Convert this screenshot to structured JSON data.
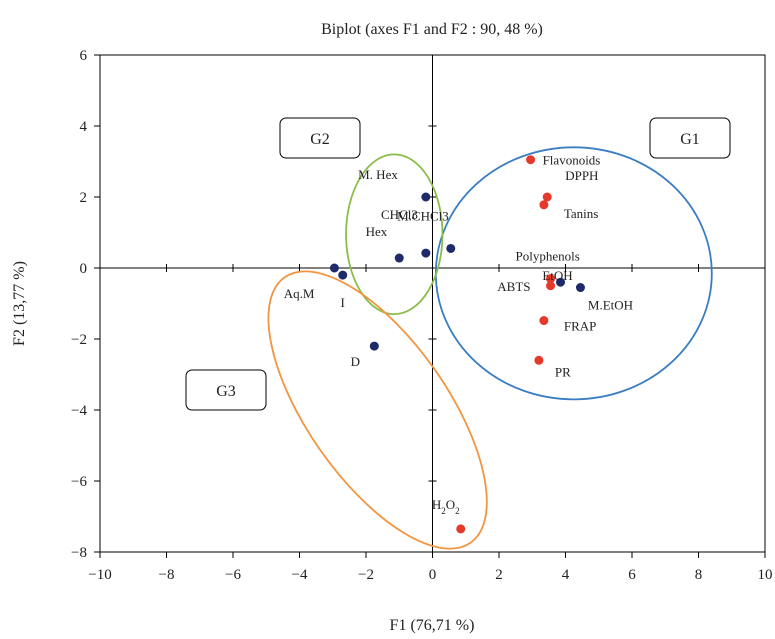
{
  "chart_data": {
    "type": "scatter",
    "title": "Biplot (axes F1 and F2 : 90, 48 %)",
    "xlabel": "F1 (76,71 %)",
    "ylabel": "F2 (13,77 %)",
    "xlim": [
      -10,
      10
    ],
    "ylim": [
      -8,
      6
    ],
    "x_ticks": [
      -10,
      -8,
      -6,
      -4,
      -2,
      0,
      2,
      4,
      6,
      8,
      10
    ],
    "y_ticks": [
      -8,
      -6,
      -4,
      -2,
      0,
      2,
      4,
      6
    ],
    "grid": false,
    "colors": {
      "observations": "#1f2a6b",
      "variables": "#e53a2b",
      "G1": "#3a7ec1",
      "G2": "#8bbd4a",
      "G3": "#f39440"
    },
    "observations": [
      {
        "label": "M. Hex",
        "x": -0.2,
        "y": 2.0
      },
      {
        "label": "CHCl3",
        "x": -0.2,
        "y": 0.42
      },
      {
        "label": "Hex",
        "x": -1.0,
        "y": 0.28
      },
      {
        "label": "M.CHCl3",
        "x": 0.55,
        "y": 0.55
      },
      {
        "label": "Aq.M",
        "x": -2.95,
        "y": 0.0
      },
      {
        "label": "I",
        "x": -2.7,
        "y": -0.2
      },
      {
        "label": "D",
        "x": -1.75,
        "y": -2.2
      },
      {
        "label": "EtOH",
        "x": 3.85,
        "y": -0.4
      },
      {
        "label": "M.EtOH",
        "x": 4.45,
        "y": -0.55
      }
    ],
    "variables": [
      {
        "label": "Flavonoids",
        "x": 2.95,
        "y": 3.05
      },
      {
        "label": "DPPH",
        "x": 3.45,
        "y": 2.0
      },
      {
        "label": "Tanins",
        "x": 3.35,
        "y": 1.78
      },
      {
        "label": "Polyphenols",
        "x": 3.55,
        "y": -0.3
      },
      {
        "label": "ABTS",
        "x": 3.55,
        "y": -0.5
      },
      {
        "label": "FRAP",
        "x": 3.35,
        "y": -1.48
      },
      {
        "label": "PR",
        "x": 3.2,
        "y": -2.6
      },
      {
        "label": "H2O2",
        "x": 0.85,
        "y": -7.35
      }
    ],
    "groups": [
      {
        "label": "G1"
      },
      {
        "label": "G2"
      },
      {
        "label": "G3"
      }
    ]
  }
}
